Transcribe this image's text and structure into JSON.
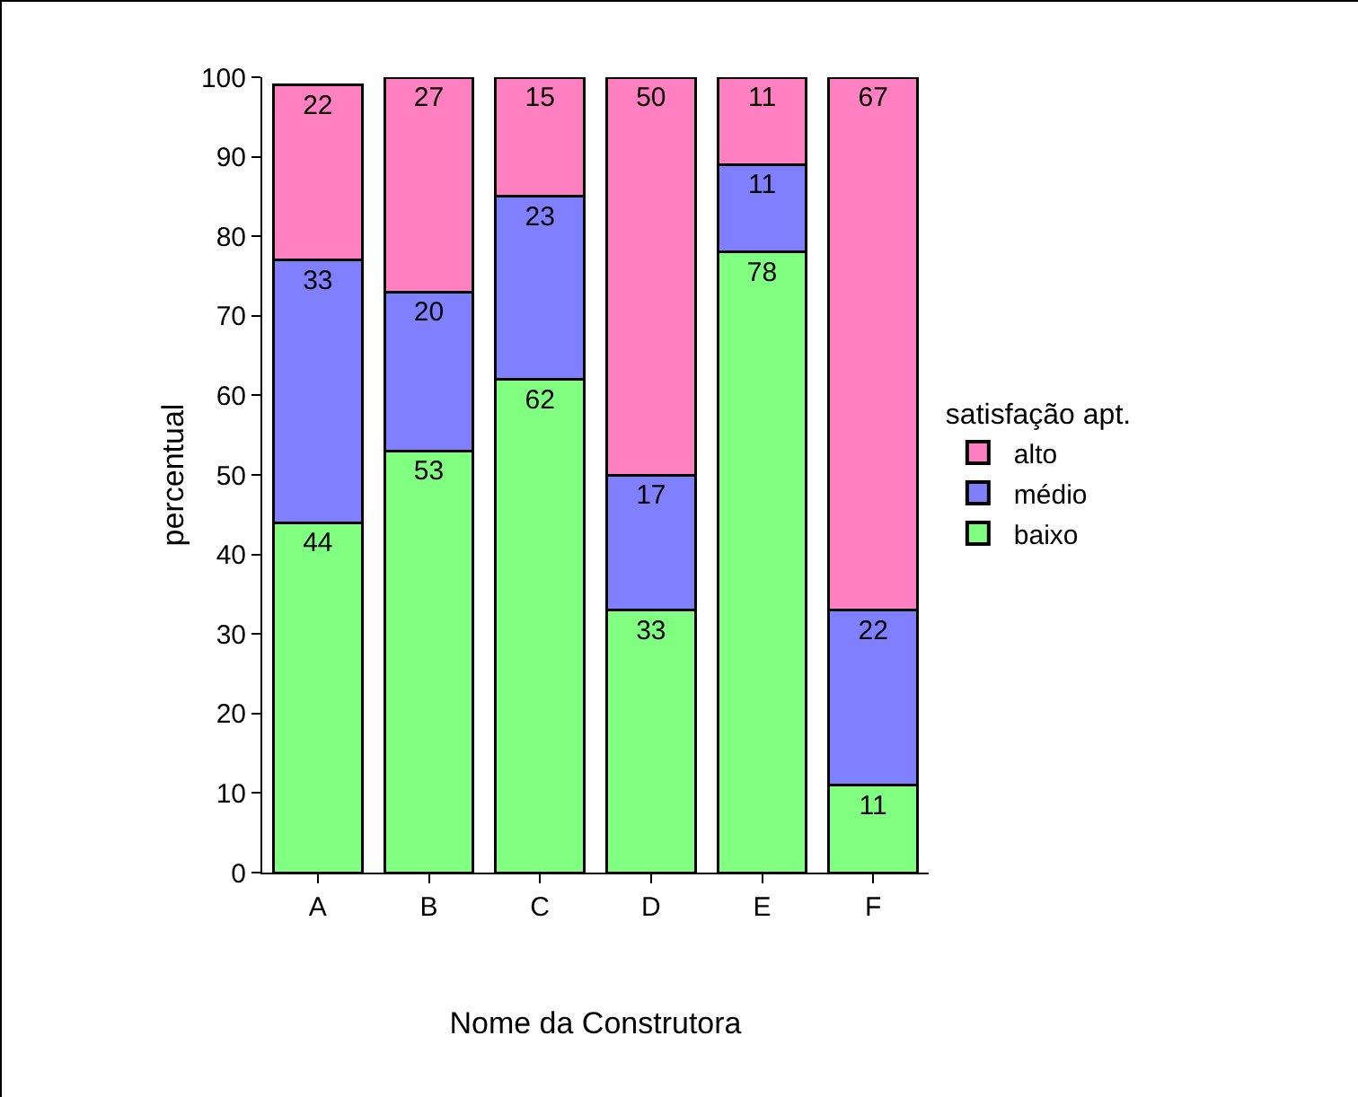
{
  "chart_data": {
    "type": "bar",
    "stacked": true,
    "xlabel": "Nome da Construtora",
    "ylabel": "percentual",
    "legend_title": "satisfação apt.",
    "legend": "right",
    "categories": [
      "A",
      "B",
      "C",
      "D",
      "E",
      "F"
    ],
    "series": [
      {
        "name": "baixo",
        "color": "#80ff80",
        "values": [
          44,
          53,
          62,
          33,
          78,
          11
        ]
      },
      {
        "name": "médio",
        "color": "#8080ff",
        "values": [
          33,
          20,
          23,
          17,
          11,
          22
        ]
      },
      {
        "name": "alto",
        "color": "#ff80c0",
        "values": [
          22,
          27,
          15,
          50,
          11,
          67
        ]
      }
    ],
    "ylim": [
      0,
      100
    ],
    "yticks": [
      0,
      10,
      20,
      30,
      40,
      50,
      60,
      70,
      80,
      90,
      100
    ],
    "grid": false,
    "data_labels": true
  }
}
